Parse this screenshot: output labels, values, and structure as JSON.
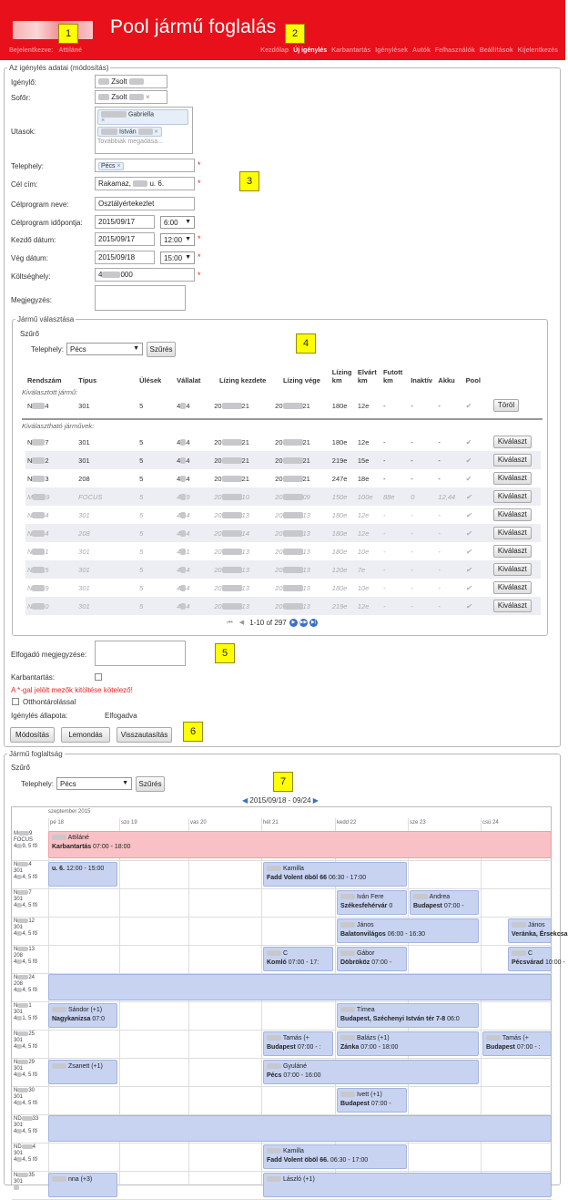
{
  "header": {
    "title": "Pool jármű foglalás",
    "user_label": "Bejelentkezve:",
    "user_name": "Attiláné",
    "nav": [
      "Kezdőlap",
      "Új igénylés",
      "Karbantartás",
      "Igénylések",
      "Autók",
      "Felhasználók",
      "Beállítások",
      "Kijelentkezés"
    ],
    "active_nav": "Új igénylés"
  },
  "markers": [
    "1",
    "2",
    "3",
    "4",
    "5",
    "6",
    "7"
  ],
  "request": {
    "legend": "Az igénylés adatai (módosítás)",
    "fields": {
      "requester_label": "Igénylő:",
      "requester_value": "Zsolt",
      "driver_label": "Sofőr:",
      "driver_value": "Zsolt",
      "passengers_label": "Utasok:",
      "passenger1": "Gabriella",
      "passenger2": "István",
      "passengers_placeholder": "Továbbiak megadása...",
      "site_label": "Telephely:",
      "site_value": "Pécs",
      "dest_label": "Cél cím:",
      "dest_value": "Rakamaz,",
      "dest_value2": "u. 6.",
      "program_label": "Célprogram neve:",
      "program_value": "Osztályértekezlet",
      "program_time_label": "Célprogram időpontja:",
      "program_date": "2015/09/17",
      "program_time": "6:00",
      "start_label": "Kezdő dátum:",
      "start_date": "2015/09/17",
      "start_time": "12:00",
      "end_label": "Vég dátum:",
      "end_date": "2015/09/18",
      "end_time": "15:00",
      "cost_label": "Költséghely:",
      "cost_prefix": "4",
      "cost_suffix": "000",
      "note_label": "Megjegyzés:"
    }
  },
  "vehicle_select": {
    "legend": "Jármű választása",
    "filter_label": "Szűrő",
    "site_label": "Telephely:",
    "site_value": "Pécs",
    "filter_button": "Szűrés",
    "columns": [
      "Rendszám",
      "Típus",
      "Ülések",
      "Vállalat",
      "Lízing kezdete",
      "Lízing vége",
      "Lízing km",
      "Elvárt km",
      "Futott km",
      "Inaktív",
      "Akku",
      "Pool"
    ],
    "selected_heading": "Kiválasztott jármű:",
    "available_heading": "Kiválasztható járművek:",
    "selected_row": {
      "plate_a": "N",
      "plate_b": "4",
      "type": "301",
      "seats": "5",
      "company_a": "4",
      "company_b": "4",
      "ls_a": "20",
      "ls_b": "21",
      "le_a": "20",
      "le_b": "21",
      "lkm": "180e",
      "ekm": "12e",
      "fkm": "-",
      "inactive": "-",
      "akku": "-",
      "pool": "✔",
      "action": "Töröl"
    },
    "rows": [
      {
        "plate_a": "N",
        "plate_b": "7",
        "type": "301",
        "seats": "5",
        "company_a": "4",
        "company_b": "4",
        "ls_a": "20",
        "ls_b": "21",
        "le_a": "20",
        "le_b": "21",
        "lkm": "180e",
        "ekm": "12e",
        "fkm": "-",
        "inactive": "-",
        "akku": "-",
        "pool": "✔",
        "action": "Kiválaszt",
        "disabled": false
      },
      {
        "plate_a": "N",
        "plate_b": "2",
        "type": "301",
        "seats": "5",
        "company_a": "4",
        "company_b": "4",
        "ls_a": "20",
        "ls_b": "21",
        "le_a": "20",
        "le_b": "21",
        "lkm": "219e",
        "ekm": "15e",
        "fkm": "-",
        "inactive": "-",
        "akku": "-",
        "pool": "✔",
        "action": "Kiválaszt",
        "disabled": false
      },
      {
        "plate_a": "N",
        "plate_b": "3",
        "type": "208",
        "seats": "5",
        "company_a": "4",
        "company_b": "4",
        "ls_a": "20",
        "ls_b": "21",
        "le_a": "20",
        "le_b": "21",
        "lkm": "247e",
        "ekm": "18e",
        "fkm": "-",
        "inactive": "-",
        "akku": "-",
        "pool": "✔",
        "action": "Kiválaszt",
        "disabled": false
      },
      {
        "plate_a": "M",
        "plate_b": "9",
        "type": "FOCUS",
        "seats": "5",
        "company_a": "4",
        "company_b": "9",
        "ls_a": "20",
        "ls_b": "10",
        "le_a": "20",
        "le_b": "09",
        "lkm": "150e",
        "ekm": "100e",
        "fkm": "88e",
        "inactive": "0",
        "akku": "12,44",
        "pool": "✔",
        "action": "Kiválaszt",
        "disabled": true
      },
      {
        "plate_a": "N",
        "plate_b": "4",
        "type": "301",
        "seats": "5",
        "company_a": "4",
        "company_b": "4",
        "ls_a": "20",
        "ls_b": "13",
        "le_a": "20",
        "le_b": "13",
        "lkm": "180e",
        "ekm": "12e",
        "fkm": "-",
        "inactive": "-",
        "akku": "-",
        "pool": "✔",
        "action": "Kiválaszt",
        "disabled": true
      },
      {
        "plate_a": "N",
        "plate_b": "4",
        "type": "208",
        "seats": "5",
        "company_a": "4",
        "company_b": "4",
        "ls_a": "20",
        "ls_b": "14",
        "le_a": "20",
        "le_b": "13",
        "lkm": "180e",
        "ekm": "12e",
        "fkm": "-",
        "inactive": "-",
        "akku": "-",
        "pool": "✔",
        "action": "Kiválaszt",
        "disabled": true
      },
      {
        "plate_a": "N",
        "plate_b": "1",
        "type": "301",
        "seats": "5",
        "company_a": "4",
        "company_b": "1",
        "ls_a": "20",
        "ls_b": "13",
        "le_a": "20",
        "le_b": "13",
        "lkm": "180e",
        "ekm": "10e",
        "fkm": "-",
        "inactive": "-",
        "akku": "-",
        "pool": "✔",
        "action": "Kiválaszt",
        "disabled": true
      },
      {
        "plate_a": "N",
        "plate_b": "5",
        "type": "301",
        "seats": "5",
        "company_a": "4",
        "company_b": "4",
        "ls_a": "20",
        "ls_b": "13",
        "le_a": "20",
        "le_b": "13",
        "lkm": "120e",
        "ekm": "7e",
        "fkm": "-",
        "inactive": "-",
        "akku": "-",
        "pool": "✔",
        "action": "Kiválaszt",
        "disabled": true
      },
      {
        "plate_a": "N",
        "plate_b": "9",
        "type": "301",
        "seats": "5",
        "company_a": "4",
        "company_b": "4",
        "ls_a": "20",
        "ls_b": "13",
        "le_a": "20",
        "le_b": "13",
        "lkm": "180e",
        "ekm": "10e",
        "fkm": "-",
        "inactive": "-",
        "akku": "-",
        "pool": "✔",
        "action": "Kiválaszt",
        "disabled": true
      },
      {
        "plate_a": "N",
        "plate_b": "0",
        "type": "301",
        "seats": "5",
        "company_a": "4",
        "company_b": "4",
        "ls_a": "20",
        "ls_b": "13",
        "le_a": "20",
        "le_b": "13",
        "lkm": "219e",
        "ekm": "12e",
        "fkm": "-",
        "inactive": "-",
        "akku": "-",
        "pool": "✔",
        "action": "Kiválaszt",
        "disabled": true
      }
    ],
    "pager_text": "1-10 of 297"
  },
  "approval": {
    "note_label": "Elfogadó megjegyzése:",
    "maintenance_label": "Karbantartás:",
    "required_note": "A *-gal jelölt mezők kitöltése kötelező!",
    "home_storage_label": "Otthontárolással",
    "status_label": "Igénylés állapota:",
    "status_value": "Elfogadva",
    "buttons": [
      "Módosítás",
      "Lemondás",
      "Visszautasítás"
    ]
  },
  "occupancy": {
    "legend": "Jármű foglaltság",
    "filter_label": "Szűrő",
    "site_label": "Telephely:",
    "site_value": "Pécs",
    "filter_button": "Szűrés",
    "range": "2015/09/18 - 09/24",
    "month": "szeptember 2015",
    "days": [
      "pé 18",
      "szo 19",
      "vas 20",
      "hét 21",
      "kedd 22",
      "sze 23",
      "csü 24"
    ],
    "rows": [
      {
        "a": "M",
        "b": "9",
        "c": "FOCUS",
        "d": "4",
        "e": "9, 5 fő"
      },
      {
        "a": "N",
        "b": "4",
        "c": "301",
        "d": "4",
        "e": "4, 5 fő"
      },
      {
        "a": "N",
        "b": "7",
        "c": "301",
        "d": "4",
        "e": "4, 5 fő"
      },
      {
        "a": "N",
        "b": "12",
        "c": "301",
        "d": "4",
        "e": "4, 5 fő"
      },
      {
        "a": "N",
        "b": "13",
        "c": "208",
        "d": "4",
        "e": "4, 5 fő"
      },
      {
        "a": "N",
        "b": "24",
        "c": "208",
        "d": "4",
        "e": "4, 5 fő"
      },
      {
        "a": "N",
        "b": "1",
        "c": "301",
        "d": "4",
        "e": "1, 5 fő"
      },
      {
        "a": "N",
        "b": "25",
        "c": "301",
        "d": "4",
        "e": "4, 5 fő"
      },
      {
        "a": "N",
        "b": "29",
        "c": "301",
        "d": "4",
        "e": "4, 5 fő"
      },
      {
        "a": "N",
        "b": "30",
        "c": "301",
        "d": "4",
        "e": "4, 5 fő"
      },
      {
        "a": "ND",
        "b": "33",
        "c": "301",
        "d": "4",
        "e": "4, 5 fő"
      },
      {
        "a": "ND",
        "b": "4",
        "c": "301",
        "d": "4",
        "e": "4, 5 fő"
      },
      {
        "a": "N",
        "b": "35",
        "c": "301",
        "d": "",
        "e": ""
      }
    ],
    "events": {
      "e0_name": "Attiláné",
      "e0_text": "Karbantartás",
      "e0_time": "07:00 - 18:00",
      "e1_text": "u. 6.",
      "e1_time": "12:00 - 15:00",
      "e2_name": "Kamilla",
      "e2_text": "Fadd Volent öböl 66",
      "e2_time": "06:30 - 17:00",
      "e3_name": "Iván Fere",
      "e3_text": "Székesfehérvár",
      "e3_time": "0",
      "e4_name": "Andrea",
      "e4_text": "Budapest",
      "e4_time": "07:00 -",
      "e5_name": "János",
      "e5_text": "Balatonvilágos",
      "e5_time": "06:00 - 16:30",
      "e6_name": "János",
      "e6_text": "Veránka, Érsekcsa",
      "e6_time": "",
      "e7_name": "C",
      "e7_text": "Komló",
      "e7_time": "07:00 - 17:",
      "e8_name": "Gábor",
      "e8_text": "Döbrököz",
      "e8_time": "07:00 -",
      "e9_name": "C",
      "e9_text": "Pécsvárad",
      "e9_time": "10:00 -",
      "e10_name": "Sándor (+1)",
      "e10_text": "Nagykanizsa",
      "e10_time": "07:0",
      "e11_name": "Tímea",
      "e11_text": "Budapest, Széchenyi István tér 7-8",
      "e11_time": "06:0",
      "e12_name": "Tamás (+",
      "e12_text": "Budapest",
      "e12_time": "07:00 - :",
      "e13_name": "Balázs (+1)",
      "e13_text": "Zánka",
      "e13_time": "07:00 - 18:00",
      "e14_name": "Tamás (+",
      "e14_text": "Budapest",
      "e14_time": "07:00 - :",
      "e15_name": "Zsanett (+1)",
      "e16_name": "Gyuláné",
      "e16_text": "Pécs",
      "e16_time": "07:00 - 16:00",
      "e17_name": "Ivett (+1)",
      "e17_text": "Budapest",
      "e17_time": "07:00 -",
      "e18_name": "Kamilla",
      "e18_text": "Fadd Volent öböl 66.",
      "e18_time": "06:30 - 17:00",
      "e19_name": "nna (+3)",
      "e20_name": "László (+1)"
    }
  }
}
